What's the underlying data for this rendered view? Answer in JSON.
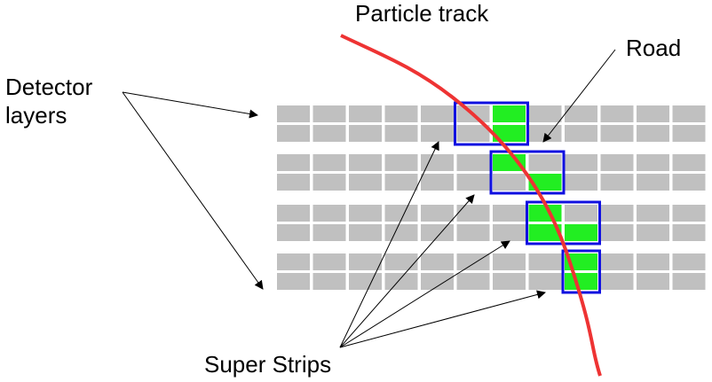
{
  "labels": {
    "particle_track": "Particle track",
    "road": "Road",
    "detector_layers_line1": "Detector",
    "detector_layers_line2": "layers",
    "super_strips": "Super Strips"
  },
  "grid": {
    "layer_count": 4,
    "rows_per_layer": 2,
    "columns": 12
  },
  "highlighted_cells": [
    [
      0,
      0,
      6
    ],
    [
      0,
      1,
      6
    ],
    [
      1,
      0,
      6
    ],
    [
      1,
      1,
      7
    ],
    [
      2,
      0,
      7
    ],
    [
      2,
      1,
      7
    ],
    [
      2,
      1,
      8
    ],
    [
      3,
      0,
      8
    ],
    [
      3,
      1,
      8
    ]
  ],
  "road_boxes": [
    {
      "layer": 0,
      "from_col": 5,
      "to_col": 6
    },
    {
      "layer": 1,
      "from_col": 6,
      "to_col": 7
    },
    {
      "layer": 2,
      "from_col": 7,
      "to_col": 8
    },
    {
      "layer": 3,
      "from_col": 8,
      "to_col": 8
    }
  ],
  "colors": {
    "strip": "#c0c0c0",
    "hit": "#22ee22",
    "road": "#1010e0",
    "track": "#ee3333",
    "arrow": "#000000"
  }
}
